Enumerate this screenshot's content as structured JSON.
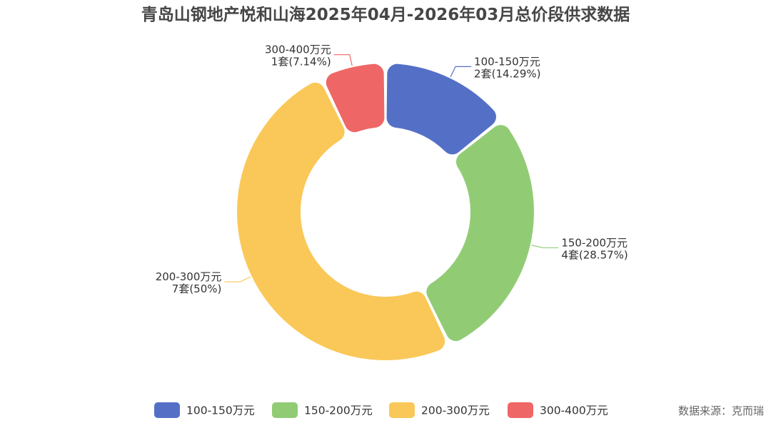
{
  "chart_data": {
    "type": "pie",
    "variant": "donut",
    "title": "青岛山钢地产悦和山海2025年04月-2026年03月总价段供求数据",
    "unit": "套",
    "legend_position": "bottom",
    "slices": [
      {
        "name": "100-150万元",
        "value": 2,
        "percent_label": "14.29%",
        "color": "#5470c6"
      },
      {
        "name": "150-200万元",
        "value": 4,
        "percent_label": "28.57%",
        "color": "#91cc75"
      },
      {
        "name": "200-300万元",
        "value": 7,
        "percent_label": "50%",
        "color": "#fac858"
      },
      {
        "name": "300-400万元",
        "value": 1,
        "percent_label": "7.14%",
        "color": "#ee6666"
      }
    ]
  },
  "source": {
    "text": "数据来源：克而瑞"
  }
}
